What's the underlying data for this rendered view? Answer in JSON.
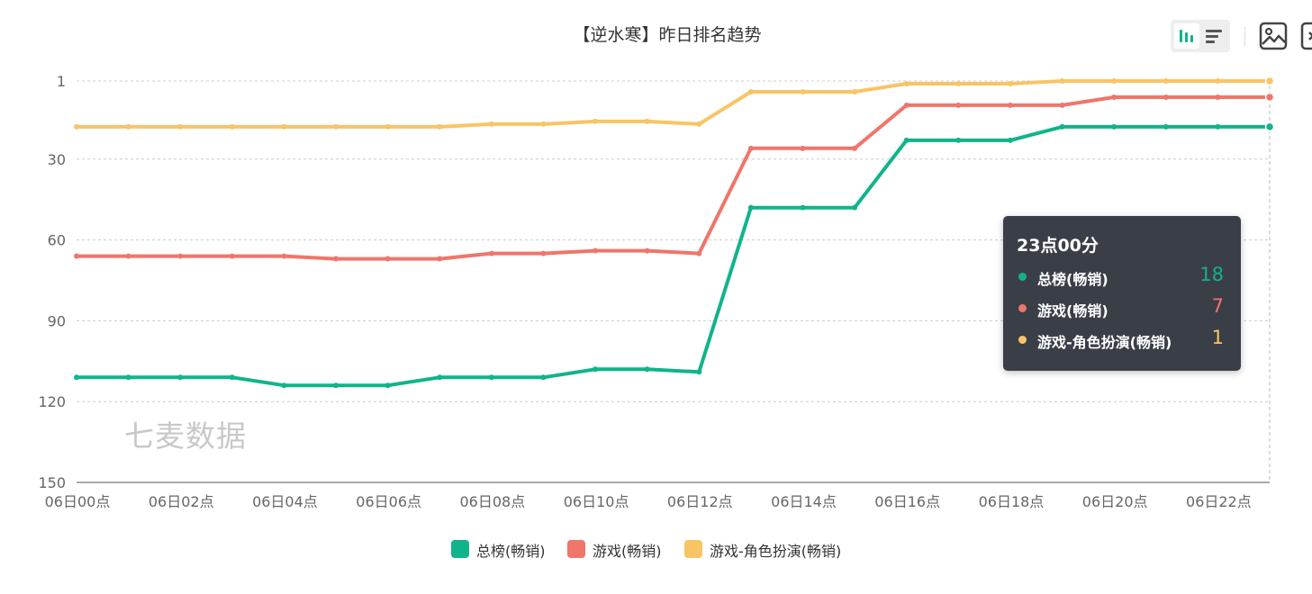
{
  "chart_data": {
    "type": "line",
    "title": "【逆水寒】昨日排名趋势",
    "y_inverted": true,
    "ylim": [
      1,
      150
    ],
    "y_ticks": [
      "1",
      "30",
      "60",
      "90",
      "120",
      "150"
    ],
    "x": [
      "06日00点",
      "06日01点",
      "06日02点",
      "06日03点",
      "06日04点",
      "06日05点",
      "06日06点",
      "06日07点",
      "06日08点",
      "06日09点",
      "06日10点",
      "06日11点",
      "06日12点",
      "06日13点",
      "06日14点",
      "06日15点",
      "06日16点",
      "06日17点",
      "06日18点",
      "06日19点",
      "06日20点",
      "06日21点",
      "06日22点",
      "06日23点"
    ],
    "x_tick_labels": [
      "06日00点",
      "06日02点",
      "06日04点",
      "06日06点",
      "06日08点",
      "06日10点",
      "06日12点",
      "06日14点",
      "06日16点",
      "06日18点",
      "06日20点",
      "06日22点"
    ],
    "grid": true,
    "legend_position": "bottom-center",
    "series": [
      {
        "name": "总榜(畅销)",
        "color": "#10b48a",
        "values": [
          111,
          111,
          111,
          111,
          114,
          114,
          114,
          111,
          111,
          111,
          108,
          108,
          109,
          48,
          48,
          48,
          23,
          23,
          23,
          18,
          18,
          18,
          18,
          18
        ]
      },
      {
        "name": "游戏(畅销)",
        "color": "#f0756a",
        "values": [
          66,
          66,
          66,
          66,
          66,
          67,
          67,
          67,
          65,
          65,
          64,
          64,
          65,
          26,
          26,
          26,
          10,
          10,
          10,
          10,
          7,
          7,
          7,
          7
        ]
      },
      {
        "name": "游戏-角色扮演(畅销)",
        "color": "#f8c465",
        "values": [
          18,
          18,
          18,
          18,
          18,
          18,
          18,
          18,
          17,
          17,
          16,
          16,
          17,
          5,
          5,
          5,
          2,
          2,
          2,
          1,
          1,
          1,
          1,
          1
        ]
      }
    ]
  },
  "tooltip": {
    "title": "23点00分",
    "rows": [
      {
        "name": "总榜(畅销)",
        "value": "18",
        "color": "#10b48a"
      },
      {
        "name": "游戏(畅销)",
        "value": "7",
        "color": "#f0756a"
      },
      {
        "name": "游戏-角色扮演(畅销)",
        "value": "1",
        "color": "#f8c465"
      }
    ]
  },
  "watermark": "七麦数据",
  "toolbar": {
    "icons": [
      "bar-chart-icon",
      "list-icon",
      "image-download-icon",
      "more-icon"
    ],
    "accent_color": "#10b48a"
  }
}
